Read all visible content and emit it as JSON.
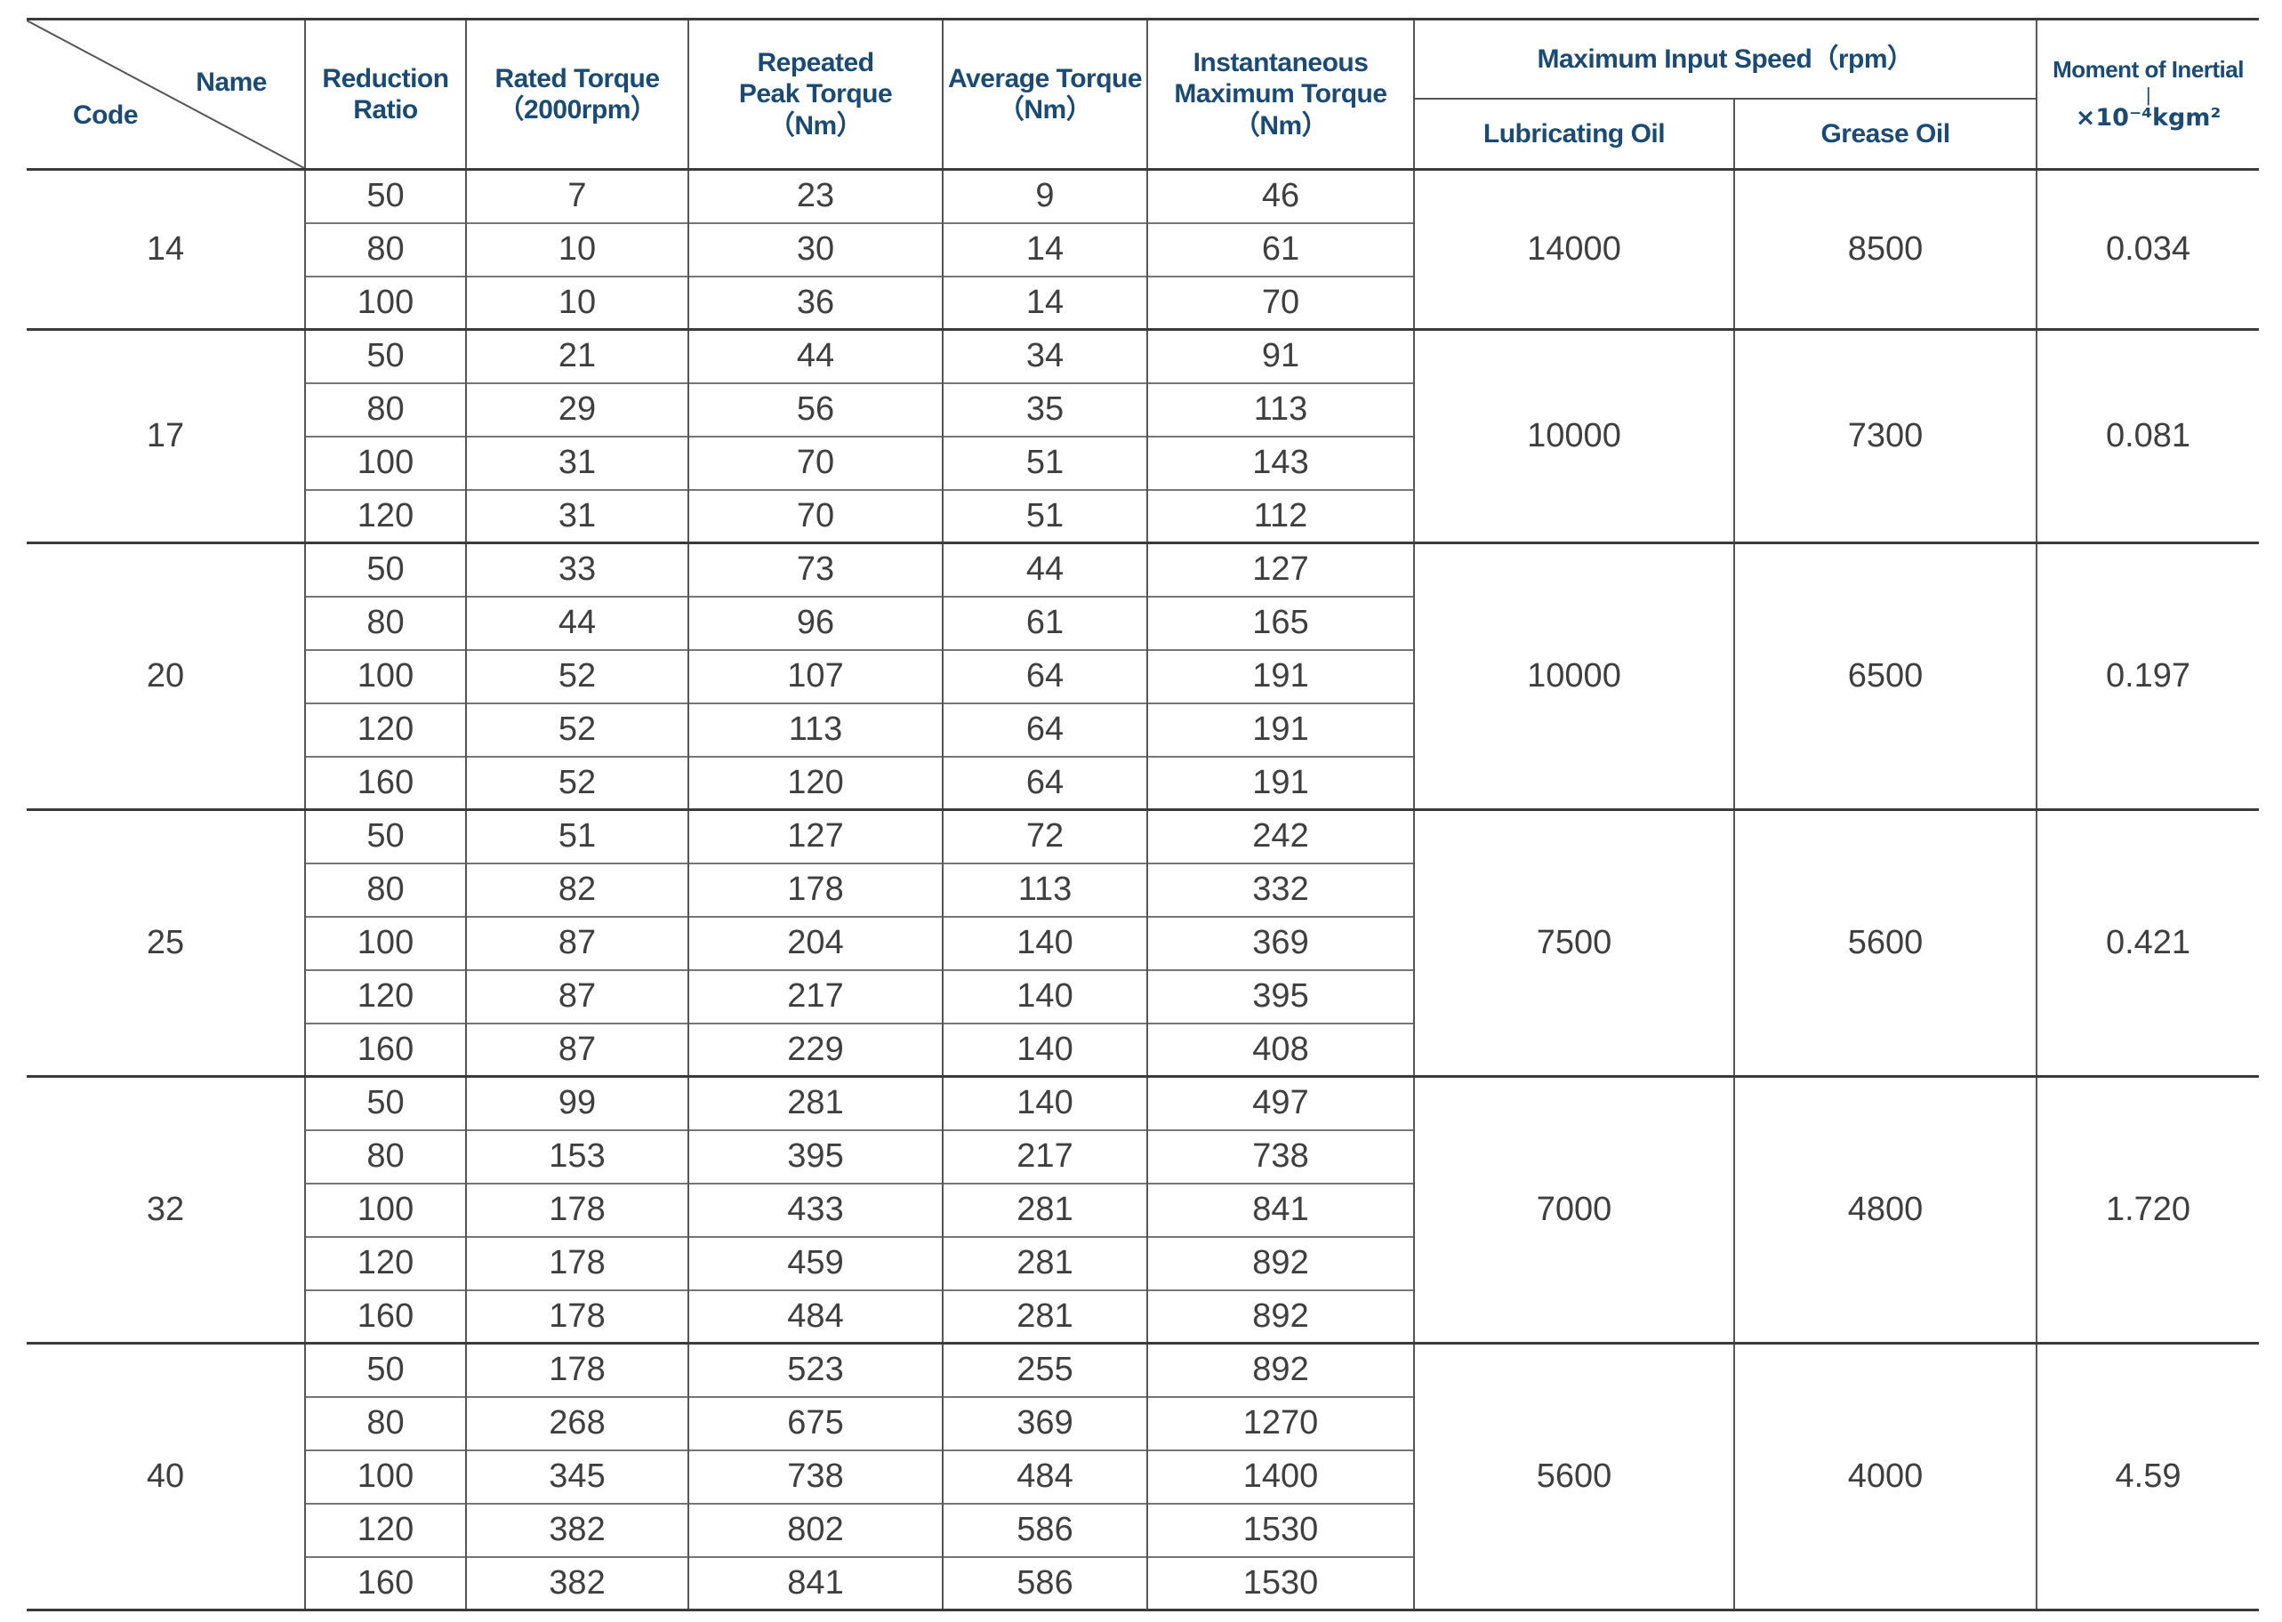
{
  "header": {
    "corner": {
      "name_label": "Name",
      "code_label": "Code"
    },
    "reduction_ratio": "Reduction\nRatio",
    "rated_torque": "Rated Torque\n（2000rpm）",
    "repeated_peak_torque": "Repeated\nPeak Torque\n（Nm）",
    "average_torque": "Average Torque\n（Nm）",
    "instantaneous_max_torque": "Instantaneous\nMaximum Torque\n（Nm）",
    "max_input_speed": "Maximum Input Speed（rpm）",
    "lubricating_oil": "Lubricating Oil",
    "grease_oil": "Grease Oil",
    "moment_of_inertia": {
      "line1": "Moment of Inertial",
      "divider": "|",
      "line2": "×10⁻⁴kgm²"
    }
  },
  "groups": [
    {
      "code": "14",
      "lubricating": "14000",
      "grease": "8500",
      "moment": "0.034",
      "rows": [
        {
          "ratio": "50",
          "rated": "7",
          "peak": "23",
          "avg": "9",
          "inst": "46"
        },
        {
          "ratio": "80",
          "rated": "10",
          "peak": "30",
          "avg": "14",
          "inst": "61"
        },
        {
          "ratio": "100",
          "rated": "10",
          "peak": "36",
          "avg": "14",
          "inst": "70"
        }
      ]
    },
    {
      "code": "17",
      "lubricating": "10000",
      "grease": "7300",
      "moment": "0.081",
      "rows": [
        {
          "ratio": "50",
          "rated": "21",
          "peak": "44",
          "avg": "34",
          "inst": "91"
        },
        {
          "ratio": "80",
          "rated": "29",
          "peak": "56",
          "avg": "35",
          "inst": "113"
        },
        {
          "ratio": "100",
          "rated": "31",
          "peak": "70",
          "avg": "51",
          "inst": "143"
        },
        {
          "ratio": "120",
          "rated": "31",
          "peak": "70",
          "avg": "51",
          "inst": "112"
        }
      ]
    },
    {
      "code": "20",
      "lubricating": "10000",
      "grease": "6500",
      "moment": "0.197",
      "rows": [
        {
          "ratio": "50",
          "rated": "33",
          "peak": "73",
          "avg": "44",
          "inst": "127"
        },
        {
          "ratio": "80",
          "rated": "44",
          "peak": "96",
          "avg": "61",
          "inst": "165"
        },
        {
          "ratio": "100",
          "rated": "52",
          "peak": "107",
          "avg": "64",
          "inst": "191"
        },
        {
          "ratio": "120",
          "rated": "52",
          "peak": "113",
          "avg": "64",
          "inst": "191"
        },
        {
          "ratio": "160",
          "rated": "52",
          "peak": "120",
          "avg": "64",
          "inst": "191"
        }
      ]
    },
    {
      "code": "25",
      "lubricating": "7500",
      "grease": "5600",
      "moment": "0.421",
      "rows": [
        {
          "ratio": "50",
          "rated": "51",
          "peak": "127",
          "avg": "72",
          "inst": "242"
        },
        {
          "ratio": "80",
          "rated": "82",
          "peak": "178",
          "avg": "113",
          "inst": "332"
        },
        {
          "ratio": "100",
          "rated": "87",
          "peak": "204",
          "avg": "140",
          "inst": "369"
        },
        {
          "ratio": "120",
          "rated": "87",
          "peak": "217",
          "avg": "140",
          "inst": "395"
        },
        {
          "ratio": "160",
          "rated": "87",
          "peak": "229",
          "avg": "140",
          "inst": "408"
        }
      ]
    },
    {
      "code": "32",
      "lubricating": "7000",
      "grease": "4800",
      "moment": "1.720",
      "rows": [
        {
          "ratio": "50",
          "rated": "99",
          "peak": "281",
          "avg": "140",
          "inst": "497"
        },
        {
          "ratio": "80",
          "rated": "153",
          "peak": "395",
          "avg": "217",
          "inst": "738"
        },
        {
          "ratio": "100",
          "rated": "178",
          "peak": "433",
          "avg": "281",
          "inst": "841"
        },
        {
          "ratio": "120",
          "rated": "178",
          "peak": "459",
          "avg": "281",
          "inst": "892"
        },
        {
          "ratio": "160",
          "rated": "178",
          "peak": "484",
          "avg": "281",
          "inst": "892"
        }
      ]
    },
    {
      "code": "40",
      "lubricating": "5600",
      "grease": "4000",
      "moment": "4.59",
      "rows": [
        {
          "ratio": "50",
          "rated": "178",
          "peak": "523",
          "avg": "255",
          "inst": "892"
        },
        {
          "ratio": "80",
          "rated": "268",
          "peak": "675",
          "avg": "369",
          "inst": "1270"
        },
        {
          "ratio": "100",
          "rated": "345",
          "peak": "738",
          "avg": "484",
          "inst": "1400"
        },
        {
          "ratio": "120",
          "rated": "382",
          "peak": "802",
          "avg": "586",
          "inst": "1530"
        },
        {
          "ratio": "160",
          "rated": "382",
          "peak": "841",
          "avg": "586",
          "inst": "1530"
        }
      ]
    }
  ],
  "colors": {
    "header_text": "#1b4b74",
    "data_text": "#3f3f3f",
    "heavy_line": "#3a3a3a",
    "light_line": "#757575",
    "vertical_line": "#555555"
  }
}
